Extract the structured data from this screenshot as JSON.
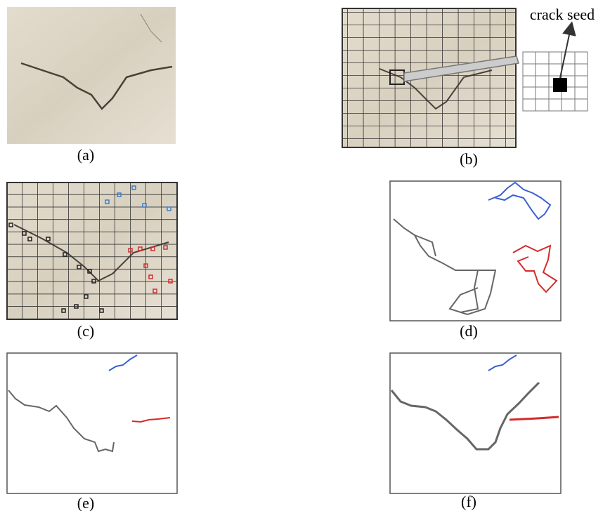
{
  "annotation": "crack seed",
  "panels": [
    {
      "label": "(a)"
    },
    {
      "label": "(b)"
    },
    {
      "label": "(c)"
    },
    {
      "label": "(d)"
    },
    {
      "label": "(e)"
    },
    {
      "label": "(f)"
    }
  ]
}
